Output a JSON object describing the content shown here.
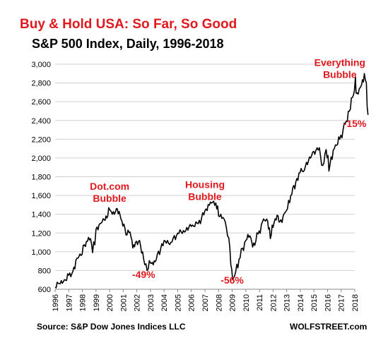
{
  "chart_data": {
    "type": "line",
    "title": "Buy & Hold USA: So Far, So Good",
    "subtitle": "S&P 500 Index, Daily, 1996-2018",
    "source": "Source: S&P Dow Jones Indices LLC",
    "brand": "WOLFSTREET.com",
    "title_color": "#e0191f",
    "annotation_color": "#e0191f",
    "line_color": "#000000",
    "grid": true,
    "ylim": [
      600,
      3000
    ],
    "xlim": [
      1996,
      2018
    ],
    "y_ticks": [
      600,
      800,
      1000,
      1200,
      1400,
      1600,
      1800,
      2000,
      2200,
      2400,
      2600,
      2800,
      3000
    ],
    "y_tick_labels": [
      "600",
      "800",
      "1,000",
      "1,200",
      "1,400",
      "1,600",
      "1,800",
      "2,000",
      "2,200",
      "2,400",
      "2,600",
      "2,800",
      "3,000"
    ],
    "x_ticks": [
      "1996",
      "1997",
      "1998",
      "1999",
      "2000",
      "2001",
      "2002",
      "2003",
      "2004",
      "2005",
      "2006",
      "2007",
      "2008",
      "2009",
      "2010",
      "2011",
      "2012",
      "2013",
      "2014",
      "2015",
      "2016",
      "2017",
      "2018"
    ],
    "series": [
      {
        "x": [
          1996.0,
          1996.3,
          1996.6,
          1997.0,
          1997.3,
          1997.6,
          1997.9,
          1998.3,
          1998.6,
          1998.75,
          1999.0,
          1999.3,
          1999.6,
          1999.8,
          2000.0,
          2000.2,
          2000.5,
          2000.7,
          2000.9,
          2001.2,
          2001.5,
          2001.7,
          2001.9,
          2002.2,
          2002.5,
          2002.75,
          2003.0,
          2003.2,
          2003.5,
          2004.0,
          2004.5,
          2005.0,
          2005.5,
          2006.0,
          2006.5,
          2007.0,
          2007.4,
          2007.8,
          2008.0,
          2008.4,
          2008.75,
          2008.9,
          2009.1,
          2009.5,
          2010.0,
          2010.3,
          2010.5,
          2010.9,
          2011.3,
          2011.6,
          2011.8,
          2012.0,
          2012.3,
          2012.5,
          2012.9,
          2013.3,
          2013.9,
          2014.3,
          2014.6,
          2014.9,
          2015.4,
          2015.65,
          2015.9,
          2016.1,
          2016.5,
          2016.9,
          2017.3,
          2017.9,
          2018.05,
          2018.1,
          2018.25,
          2018.5,
          2018.7,
          2018.85,
          2018.97
        ],
        "values": [
          620,
          660,
          680,
          750,
          790,
          930,
          960,
          1110,
          1140,
          990,
          1240,
          1300,
          1340,
          1360,
          1450,
          1400,
          1460,
          1430,
          1330,
          1180,
          1210,
          1040,
          1100,
          1120,
          920,
          800,
          880,
          860,
          970,
          1120,
          1100,
          1200,
          1210,
          1270,
          1300,
          1440,
          1530,
          1520,
          1380,
          1350,
          1150,
          860,
          720,
          920,
          1120,
          1170,
          1050,
          1190,
          1350,
          1330,
          1140,
          1260,
          1390,
          1320,
          1420,
          1600,
          1840,
          1870,
          1970,
          2060,
          2110,
          1920,
          2090,
          1860,
          2100,
          2200,
          2370,
          2670,
          2870,
          2690,
          2680,
          2780,
          2900,
          2800,
          2460
        ]
      }
    ],
    "annotations": [
      {
        "lines": [
          "Dot.com",
          "Bubble"
        ],
        "x": 2000.0,
        "y": 1660
      },
      {
        "lines": [
          "-49%"
        ],
        "x": 2002.5,
        "y": 720
      },
      {
        "lines": [
          "Housing",
          "Bubble"
        ],
        "x": 2007.0,
        "y": 1680
      },
      {
        "lines": [
          "-56%"
        ],
        "x": 2009.0,
        "y": 660
      },
      {
        "lines": [
          "Everything",
          "Bubble"
        ],
        "x": 2016.9,
        "y": 2980
      },
      {
        "lines": [
          "-15%"
        ],
        "x": 2018.0,
        "y": 2330
      }
    ]
  }
}
